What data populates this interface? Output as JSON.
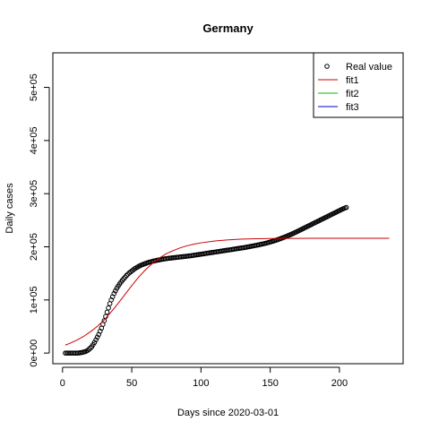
{
  "chart_data": {
    "type": "scatter",
    "title": "Germany",
    "xlabel": "Days since 2020-03-01",
    "ylabel": "Daily cases",
    "xlim": [
      -7,
      246
    ],
    "ylim": [
      -20000,
      565000
    ],
    "xticks": [
      0,
      50,
      100,
      150,
      200
    ],
    "xtick_labels": [
      "0",
      "50",
      "100",
      "150",
      "200"
    ],
    "yticks": [
      0,
      100000,
      200000,
      300000,
      400000,
      500000
    ],
    "ytick_labels": [
      "0e+00",
      "1e+05",
      "2e+05",
      "3e+05",
      "4e+05",
      "5e+05"
    ],
    "grid": false,
    "legend_position": "top-right",
    "series": [
      {
        "name": "Real value",
        "kind": "points",
        "marker": "open-circle",
        "color": "#000000",
        "x_start": 2,
        "x_end": 205,
        "y": [
          0,
          0,
          0,
          0,
          0,
          0,
          0,
          0,
          0,
          0,
          300,
          700,
          1200,
          1800,
          2500,
          3500,
          5000,
          7000,
          9500,
          12000,
          16000,
          20000,
          25000,
          30000,
          35000,
          41000,
          47000,
          54000,
          61000,
          69000,
          77000,
          85000,
          93000,
          100000,
          106000,
          112000,
          117000,
          122000,
          126000,
          130000,
          133500,
          137000,
          140000,
          143000,
          146000,
          148500,
          151000,
          153000,
          155000,
          157000,
          159000,
          160500,
          162000,
          163500,
          165000,
          166000,
          167000,
          168000,
          169000,
          170000,
          170800,
          171500,
          172200,
          172900,
          173500,
          174100,
          174700,
          175200,
          175700,
          176200,
          176700,
          177100,
          177500,
          177900,
          178300,
          178600,
          178900,
          179200,
          179500,
          179800,
          180100,
          180400,
          180700,
          181000,
          181300,
          181600,
          181900,
          182200,
          182500,
          182800,
          183100,
          183500,
          183900,
          184300,
          184700,
          185100,
          185500,
          185900,
          186300,
          186700,
          187100,
          187500,
          187900,
          188300,
          188700,
          189100,
          189500,
          189900,
          190300,
          190700,
          191100,
          191500,
          191900,
          192300,
          192700,
          193100,
          193500,
          193900,
          194300,
          194700,
          195100,
          195500,
          195900,
          196300,
          196700,
          197100,
          197500,
          197900,
          198300,
          198700,
          199200,
          199700,
          200200,
          200700,
          201200,
          201700,
          202200,
          202700,
          203200,
          203700,
          204300,
          204900,
          205500,
          206100,
          206700,
          207400,
          208100,
          208800,
          209600,
          210400,
          211200,
          212000,
          212900,
          213800,
          214700,
          215700,
          216700,
          217700,
          218700,
          219800,
          220900,
          222000,
          223100,
          224300,
          225500,
          226700,
          227900,
          229200,
          230500,
          231800,
          233100,
          234400,
          235700,
          237000,
          238300,
          239600,
          240900,
          242200,
          243500,
          244800,
          246100,
          247400,
          248700,
          250000,
          251300,
          252600,
          253900,
          255200,
          256500,
          257800,
          259100,
          260400,
          261700,
          263000,
          264300,
          265600,
          266900,
          268200,
          269500,
          270800,
          272000,
          273000,
          274000
        ]
      },
      {
        "name": "fit1",
        "kind": "line",
        "color": "#cc0000",
        "x": [
          2,
          5,
          10,
          15,
          20,
          25,
          30,
          35,
          40,
          45,
          50,
          55,
          60,
          65,
          70,
          75,
          80,
          85,
          90,
          95,
          100,
          110,
          120,
          130,
          140,
          150,
          160,
          170,
          180,
          190,
          200,
          210,
          220,
          236
        ],
        "y": [
          15000,
          18000,
          24000,
          31000,
          40000,
          50000,
          62000,
          77000,
          93000,
          110000,
          127000,
          143000,
          157000,
          169000,
          179000,
          187000,
          193000,
          198000,
          202000,
          205000,
          207500,
          211000,
          213000,
          214500,
          215200,
          215600,
          215800,
          215900,
          216000,
          216000,
          216000,
          216000,
          216000,
          216000
        ]
      },
      {
        "name": "fit2",
        "kind": "line",
        "color": "#00bb00",
        "x": [],
        "y": []
      },
      {
        "name": "fit3",
        "kind": "line",
        "color": "#0000cc",
        "x": [],
        "y": []
      }
    ]
  }
}
